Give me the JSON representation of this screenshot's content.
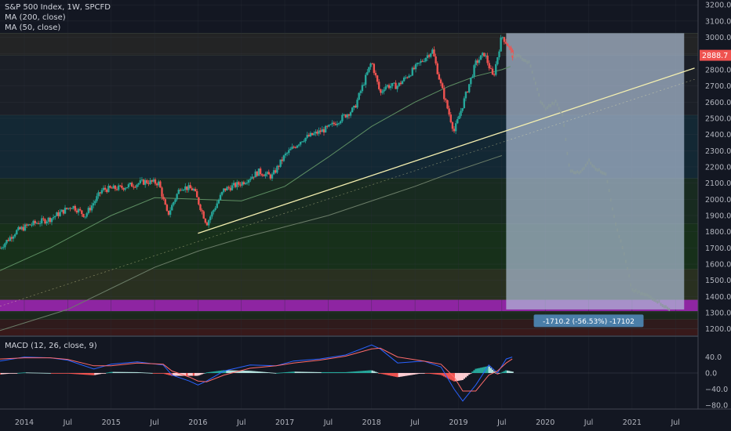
{
  "legend": {
    "title": "S&P 500 Index, 1W, SPCFD",
    "ma200": "MA (200, close)",
    "ma50": "MA (50, close)",
    "macd": "MACD (12, 26, close, 9)"
  },
  "price_label": "2888.7",
  "measure_label": "-1710.2 (-56.53%) -17102",
  "colors": {
    "background": "#131722",
    "up": "#26a69a",
    "down": "#ef5350",
    "ma200": "#6b7d68",
    "trendline": "#f5f0b0",
    "macd_line": "#2962ff",
    "signal_line": "#ff6b6b",
    "measure_box": "#b2c4dc",
    "purple_band": "#a020a0"
  },
  "chart_data": [
    {
      "type": "candlestick",
      "title": "S&P 500 Index, 1W, SPCFD",
      "ylim": [
        1160,
        3230
      ],
      "yticks": [
        1200,
        1300,
        1400,
        1500,
        1600,
        1700,
        1800,
        1900,
        2000,
        2100,
        2200,
        2300,
        2400,
        2500,
        2600,
        2700,
        2800,
        2900,
        3000,
        3100,
        3200
      ],
      "y_tick_labels": [
        "1200.0",
        "1300.0",
        "1400.0",
        "1500.0",
        "1600.0",
        "1700.0",
        "1800.0",
        "1900.0",
        "2000.0",
        "2100.0",
        "2200.0",
        "2300.0",
        "2400.0",
        "2500.0",
        "2600.0",
        "2700.0",
        "2800.0",
        "2900.0",
        "3000.0",
        "3100.0",
        "3200.0"
      ],
      "x_tick_labels": [
        "2014",
        "Jul",
        "2015",
        "Jul",
        "2016",
        "Jul",
        "2017",
        "Jul",
        "2018",
        "Jul",
        "2019",
        "Jul",
        "2020",
        "Jul",
        "2021",
        "Jul"
      ],
      "x_tick_years": [
        2014.0,
        2014.5,
        2015.0,
        2015.5,
        2016.0,
        2016.5,
        2017.0,
        2017.5,
        2018.0,
        2018.5,
        2019.0,
        2019.5,
        2020.0,
        2020.5,
        2021.0,
        2021.5
      ],
      "xlim": [
        2013.72,
        2021.76
      ],
      "price_path": {
        "x": [
          2013.72,
          2013.9,
          2014.05,
          2014.3,
          2014.55,
          2014.7,
          2014.9,
          2015.1,
          2015.4,
          2015.55,
          2015.65,
          2015.8,
          2015.95,
          2016.1,
          2016.3,
          2016.5,
          2016.7,
          2016.85,
          2017.0,
          2017.2,
          2017.5,
          2017.8,
          2018.0,
          2018.1,
          2018.15,
          2018.3,
          2018.5,
          2018.7,
          2018.8,
          2018.95,
          2019.0,
          2019.2,
          2019.3,
          2019.4,
          2019.5,
          2019.56,
          2019.62
        ],
        "y": [
          1700,
          1800,
          1840,
          1880,
          1960,
          1900,
          2060,
          2070,
          2110,
          2100,
          1900,
          2080,
          2060,
          1850,
          2060,
          2100,
          2170,
          2140,
          2270,
          2370,
          2440,
          2560,
          2850,
          2650,
          2700,
          2700,
          2810,
          2920,
          2700,
          2420,
          2500,
          2840,
          2900,
          2750,
          3010,
          2960,
          2890
        ]
      },
      "ma200_path": {
        "x": [
          2013.72,
          2014.5,
          2015.0,
          2015.5,
          2016.0,
          2016.5,
          2017.0,
          2017.5,
          2018.0,
          2018.5,
          2019.0,
          2019.5
        ],
        "y": [
          1190,
          1320,
          1450,
          1580,
          1680,
          1760,
          1830,
          1900,
          1990,
          2080,
          2180,
          2270
        ]
      },
      "ma50_path": {
        "x": [
          2013.72,
          2014.3,
          2015.0,
          2015.5,
          2016.0,
          2016.5,
          2017.0,
          2017.5,
          2018.0,
          2018.5,
          2018.9,
          2019.2,
          2019.5,
          2019.6
        ],
        "y": [
          1560,
          1700,
          1900,
          2010,
          2000,
          1990,
          2080,
          2260,
          2450,
          2600,
          2700,
          2760,
          2800,
          2820
        ]
      },
      "projection_path": {
        "x": [
          2019.62,
          2019.7,
          2019.82,
          2019.95,
          2020.0,
          2020.12,
          2020.2,
          2020.28,
          2020.4,
          2020.5,
          2020.6,
          2020.7,
          2020.8,
          2020.9,
          2021.0,
          2021.1,
          2021.2,
          2021.3,
          2021.42
        ],
        "y": [
          2890,
          2880,
          2840,
          2600,
          2560,
          2600,
          2520,
          2180,
          2160,
          2240,
          2180,
          2160,
          1870,
          1680,
          1440,
          1420,
          1400,
          1370,
          1320
        ]
      },
      "trendline": {
        "x": [
          2016.0,
          2021.72
        ],
        "y": [
          1790,
          2810
        ]
      },
      "bands": [
        {
          "from": 1160,
          "to": 1200,
          "color": "#3d1a1a"
        },
        {
          "from": 1200,
          "to": 1260,
          "color": "#331c1c"
        },
        {
          "from": 1260,
          "to": 1310,
          "color": "#1d2a1d"
        },
        {
          "from": 1310,
          "to": 1380,
          "color": "#9c27b0"
        },
        {
          "from": 1380,
          "to": 1570,
          "color": "#2c3320"
        },
        {
          "from": 1570,
          "to": 1850,
          "color": "#18331a"
        },
        {
          "from": 1850,
          "to": 2130,
          "color": "#1a2d20"
        },
        {
          "from": 2130,
          "to": 2520,
          "color": "#142a36"
        },
        {
          "from": 2520,
          "to": 2890,
          "color": "#1d2028"
        },
        {
          "from": 2890,
          "to": 3025,
          "color": "#262626"
        }
      ],
      "measure_box": {
        "x": [
          2019.55,
          2021.6
        ],
        "y": [
          1320,
          3025
        ]
      },
      "last_price": 2888.7
    },
    {
      "type": "bar",
      "title": "MACD (12, 26, close, 9)",
      "ylim": [
        -90,
        90
      ],
      "yticks": [
        40,
        0,
        -40,
        -80
      ],
      "y_tick_labels": [
        "40.0",
        "0.0",
        "−40.0",
        "−80.0"
      ],
      "macd_path": {
        "x": [
          2013.72,
          2014.0,
          2014.3,
          2014.5,
          2014.8,
          2015.0,
          2015.3,
          2015.6,
          2015.7,
          2015.9,
          2016.0,
          2016.1,
          2016.3,
          2016.6,
          2016.9,
          2017.1,
          2017.4,
          2017.7,
          2018.0,
          2018.1,
          2018.3,
          2018.6,
          2018.8,
          2018.95,
          2019.05,
          2019.2,
          2019.35,
          2019.45,
          2019.55,
          2019.62
        ],
        "y": [
          30,
          40,
          38,
          32,
          10,
          22,
          28,
          20,
          -5,
          -20,
          -30,
          -20,
          5,
          20,
          18,
          30,
          35,
          45,
          70,
          60,
          25,
          30,
          15,
          -40,
          -70,
          -30,
          20,
          0,
          35,
          40
        ]
      },
      "signal_path": {
        "x": [
          2013.72,
          2014.0,
          2014.3,
          2014.5,
          2014.8,
          2015.0,
          2015.3,
          2015.6,
          2015.7,
          2015.9,
          2016.0,
          2016.1,
          2016.3,
          2016.6,
          2016.9,
          2017.1,
          2017.4,
          2017.7,
          2018.0,
          2018.1,
          2018.3,
          2018.6,
          2018.8,
          2018.95,
          2019.05,
          2019.2,
          2019.35,
          2019.45,
          2019.55,
          2019.62
        ],
        "y": [
          35,
          38,
          38,
          34,
          18,
          18,
          25,
          22,
          5,
          -10,
          -20,
          -22,
          -5,
          12,
          18,
          25,
          32,
          42,
          60,
          62,
          40,
          30,
          22,
          -10,
          -45,
          -45,
          -5,
          5,
          25,
          35
        ]
      }
    }
  ]
}
